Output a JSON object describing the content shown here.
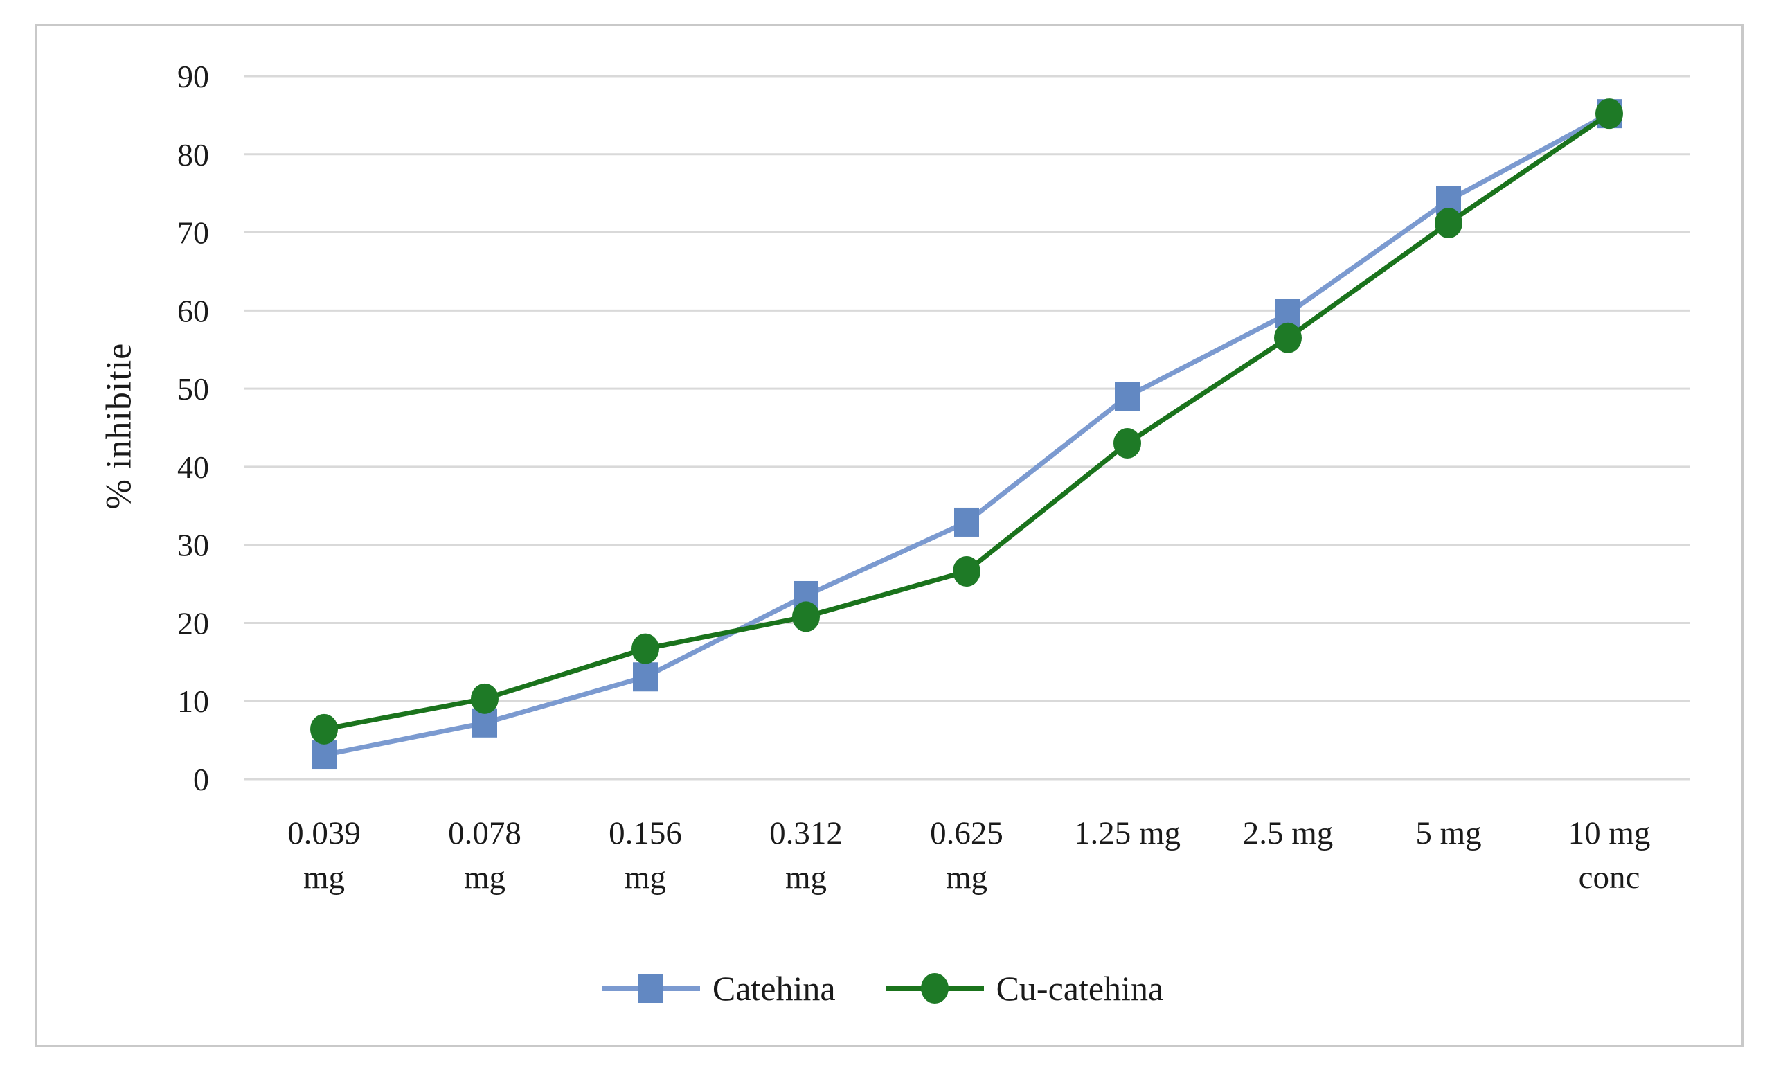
{
  "figure": {
    "background": "#ffffff",
    "border_color": "#c9c9c9"
  },
  "chart_data": {
    "type": "line",
    "title": "",
    "xlabel": "",
    "ylabel": "% inhibitie",
    "ylim": [
      0,
      90
    ],
    "yticks": [
      0,
      10,
      20,
      30,
      40,
      50,
      60,
      70,
      80,
      90
    ],
    "grid": "horizontal-only",
    "gridline_color": "#d9d9d9",
    "text_color": "#1a1a1a",
    "legend_position": "bottom-center",
    "categories": [
      [
        "0.039",
        "mg"
      ],
      [
        "0.078",
        "mg"
      ],
      [
        "0.156",
        "mg"
      ],
      [
        "0.312",
        "mg"
      ],
      [
        "0.625",
        "mg"
      ],
      [
        "1.25 mg",
        ""
      ],
      [
        "2.5 mg",
        ""
      ],
      [
        "5 mg",
        ""
      ],
      [
        "10 mg",
        "conc"
      ]
    ],
    "series": [
      {
        "name": "Catehina",
        "marker": "square",
        "marker_color": "#6288c2",
        "line_color": "#7b9ad0",
        "values": [
          3.1,
          7.2,
          13.1,
          23.5,
          32.9,
          49.0,
          59.6,
          74.1,
          85.2
        ]
      },
      {
        "name": "Cu-catehina",
        "marker": "circle",
        "marker_color": "#1e7a26",
        "line_color": "#1a731c",
        "values": [
          6.4,
          10.3,
          16.7,
          20.8,
          26.6,
          43.0,
          56.5,
          71.2,
          85.2
        ]
      }
    ]
  }
}
